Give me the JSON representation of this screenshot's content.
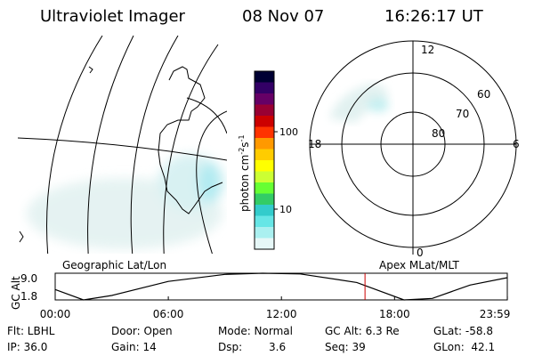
{
  "header": {
    "instrument": "Ultraviolet Imager",
    "date": "08 Nov 07",
    "time": "16:26:17 UT"
  },
  "geo_panel": {
    "label": "Geographic Lat/Lon"
  },
  "colorbar": {
    "unit_label": "photon cm",
    "unit_sup1": "-2",
    "unit_s": "s",
    "unit_sup2": "-1",
    "tick_100": "100",
    "tick_10": "10",
    "colors": [
      "#000033",
      "#330066",
      "#660066",
      "#990033",
      "#cc0000",
      "#ff3300",
      "#ff9900",
      "#ffcc00",
      "#ffff00",
      "#ccff33",
      "#66ff33",
      "#33cc66",
      "#33cccc",
      "#66e6e6",
      "#aaf0f0",
      "#e6f7f7"
    ]
  },
  "polar_panel": {
    "label": "Apex MLat/MLT",
    "mlt_top": "12",
    "mlt_left": "18",
    "mlt_right": "6",
    "mlt_bottom": "0",
    "lat_60": "60",
    "lat_70": "70",
    "lat_80": "80"
  },
  "altitude_plot": {
    "ylabel": "GC Alt",
    "ytick_top": "9.0",
    "ytick_bottom": "1.8",
    "xticks": [
      "00:00",
      "06:00",
      "12:00",
      "18:00",
      "23:59"
    ],
    "marker_time": "16:26"
  },
  "chart_data": {
    "type": "line",
    "title": "",
    "xlabel": "",
    "ylabel": "GC Alt",
    "x": [
      0,
      1.5,
      3,
      6,
      9,
      11,
      13,
      16,
      18.5,
      20,
      22,
      23.98
    ],
    "values": [
      4.6,
      1.8,
      3.0,
      6.8,
      8.7,
      9.0,
      8.8,
      6.5,
      1.8,
      2.2,
      5.8,
      7.8
    ],
    "ylim": [
      1.8,
      9.0
    ],
    "xlim": [
      0,
      23.98
    ]
  },
  "status": {
    "flt": "Flt: LBHL",
    "ip": "IP: 36.0",
    "door": "Door: Open",
    "gain": "Gain: 14",
    "mode": "Mode: Normal",
    "dsp_label": "Dsp:",
    "dsp_value": "3.6",
    "gc_alt": "GC Alt: 6.3 Re",
    "seq": "Seq: 39",
    "glat": "GLat: -58.8",
    "glon": "GLon:  42.1"
  }
}
